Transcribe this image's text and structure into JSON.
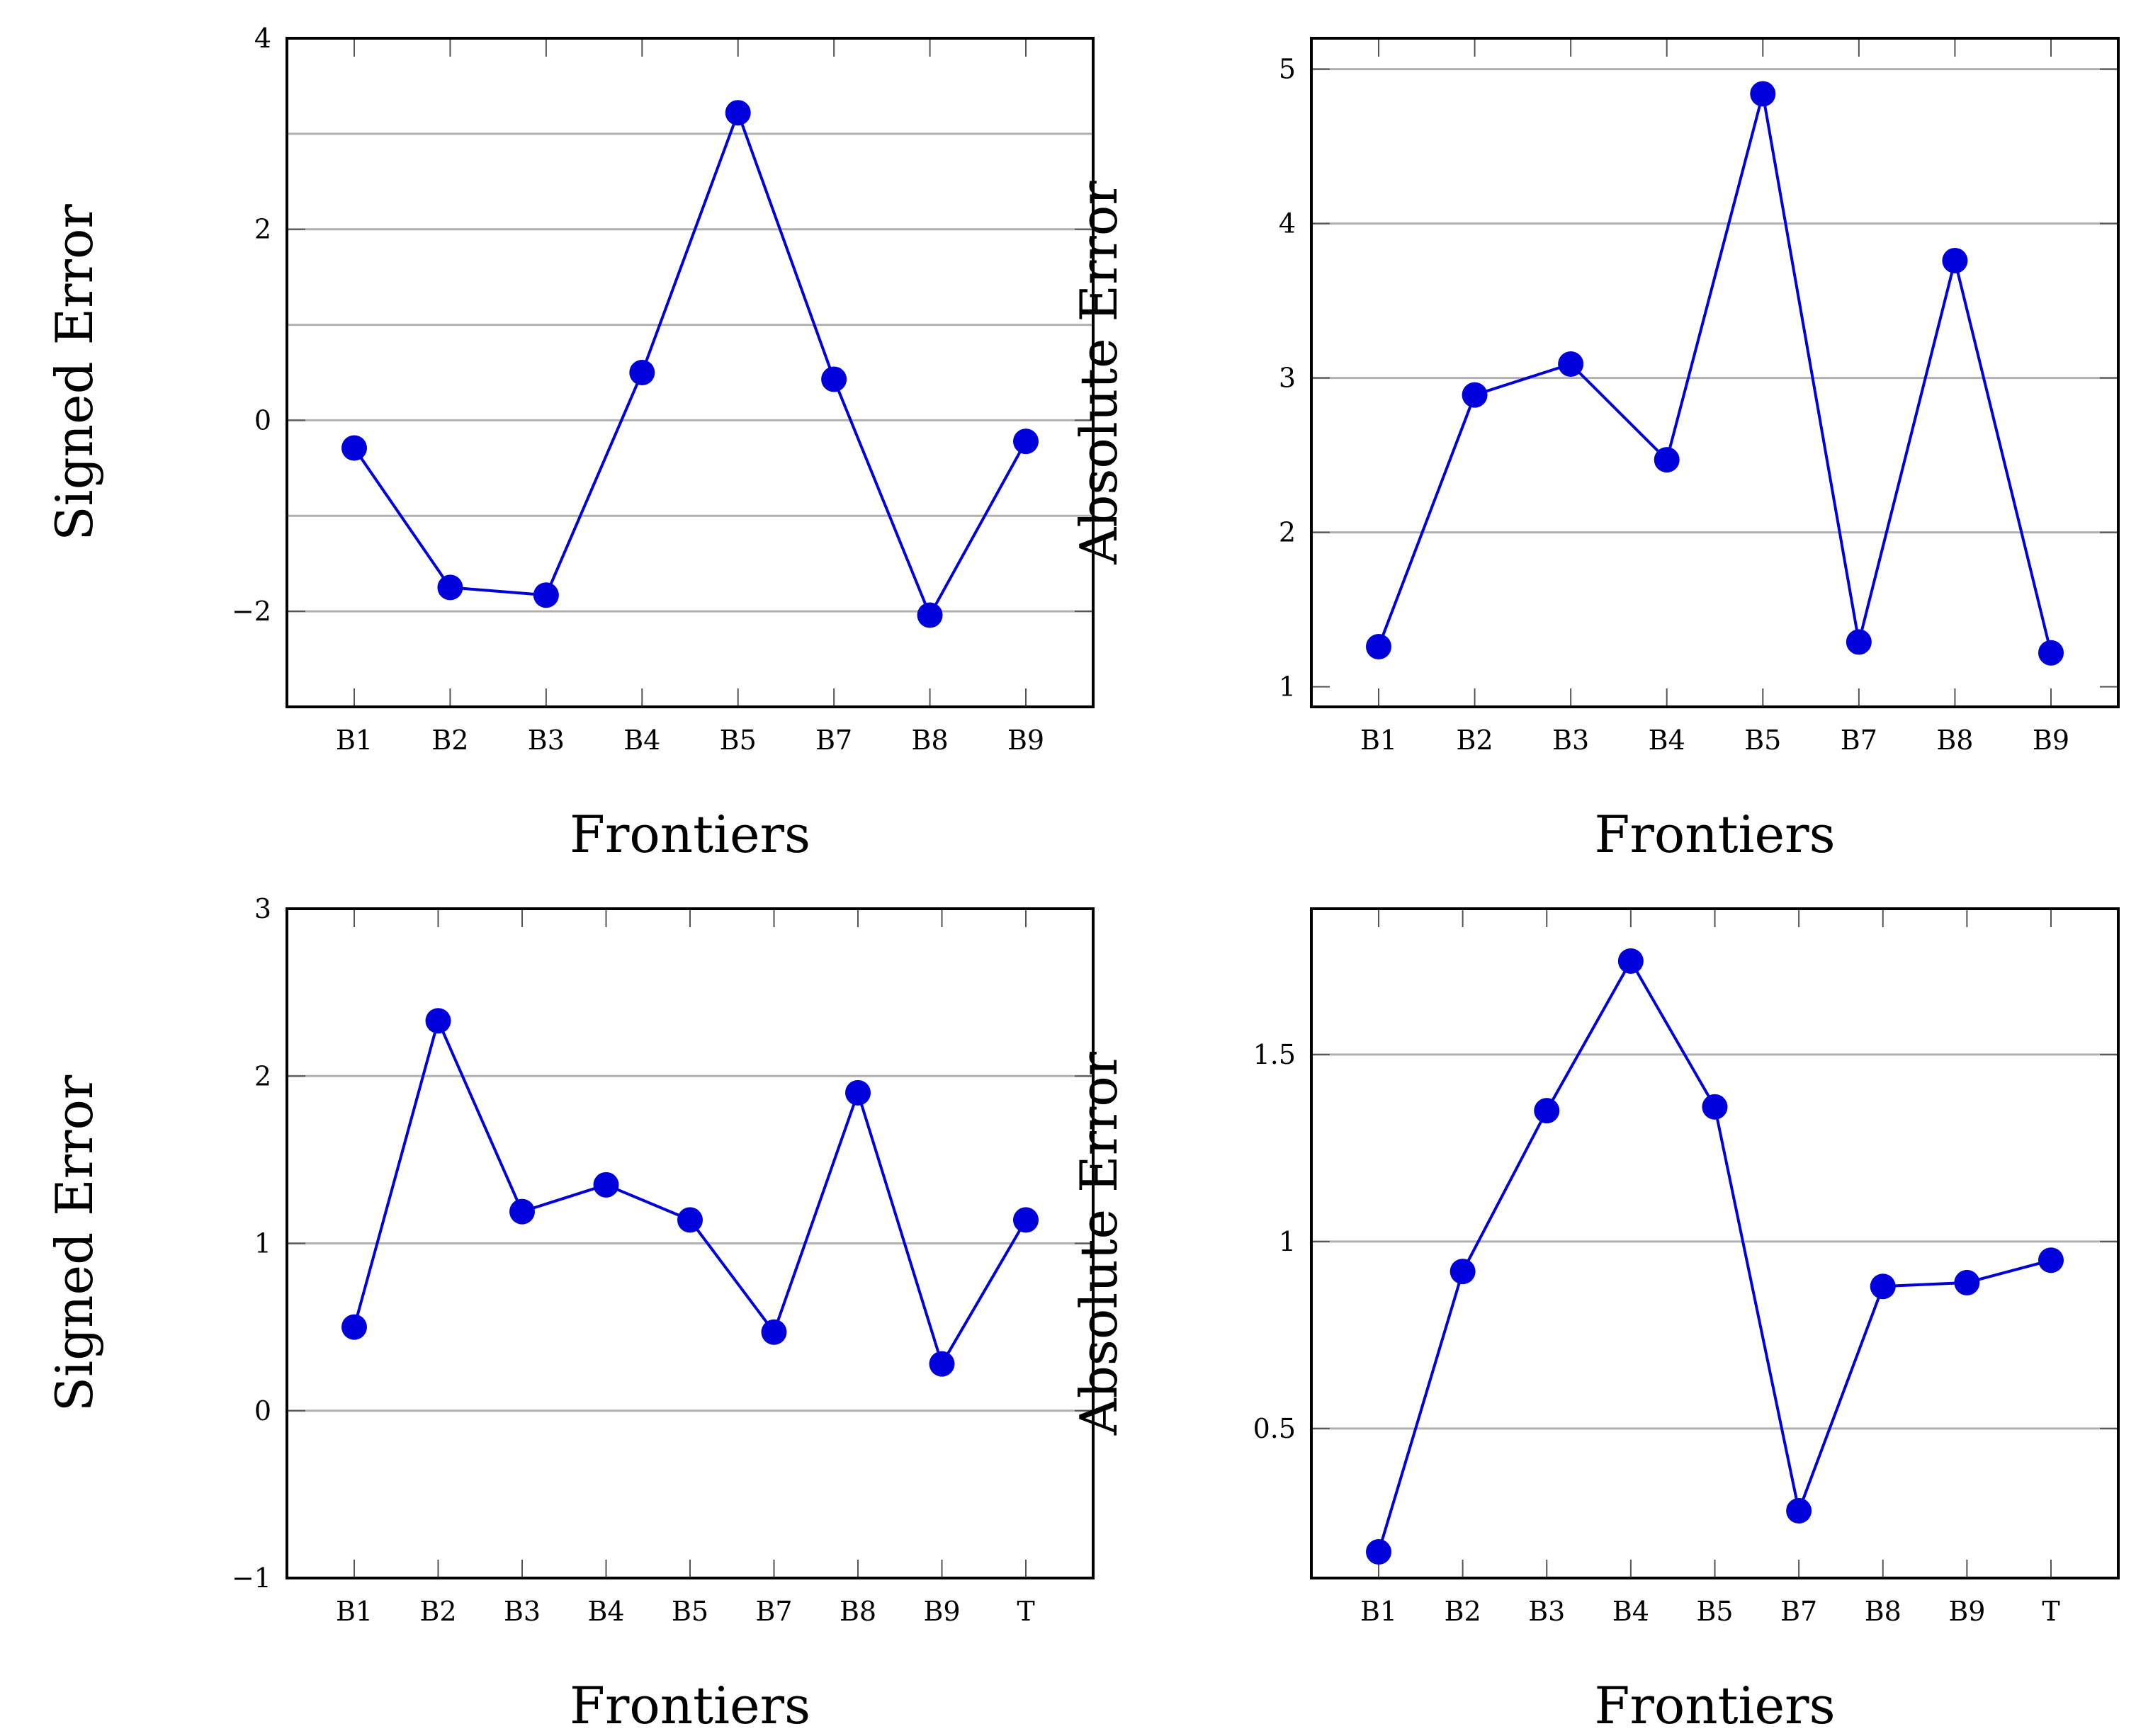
{
  "colors": {
    "series": "#0000dd",
    "grid": "#b0b0b0",
    "axis": "#000000"
  },
  "chart_data": [
    {
      "type": "line",
      "position": "top-left",
      "xlabel": "Frontiers",
      "ylabel": "Signed Error",
      "categories": [
        "B1",
        "B2",
        "B3",
        "B4",
        "B5",
        "B7",
        "B8",
        "B9"
      ],
      "series": [
        {
          "name": "Signed Error",
          "values": [
            -0.29,
            -1.75,
            -1.83,
            0.5,
            3.22,
            0.43,
            -2.04,
            -0.22
          ]
        }
      ],
      "ylim": [
        -3,
        4
      ],
      "yticks": [
        -2,
        0,
        2,
        4
      ],
      "ytick_labels": [
        "−2",
        "0",
        "2",
        "4"
      ],
      "grid_y": [
        -2,
        -1,
        0,
        1,
        2,
        3
      ],
      "grid": true
    },
    {
      "type": "line",
      "position": "top-right",
      "xlabel": "Frontiers",
      "ylabel": "Absolute Error",
      "categories": [
        "B1",
        "B2",
        "B3",
        "B4",
        "B5",
        "B7",
        "B8",
        "B9"
      ],
      "series": [
        {
          "name": "Absolute Error",
          "values": [
            1.26,
            2.89,
            3.09,
            2.47,
            4.84,
            1.29,
            3.76,
            1.22
          ]
        }
      ],
      "ylim": [
        0.87,
        5.2
      ],
      "yticks": [
        1,
        2,
        3,
        4,
        5
      ],
      "ytick_labels": [
        "1",
        "2",
        "3",
        "4",
        "5"
      ],
      "grid_y": [
        2,
        3,
        4,
        5
      ],
      "grid": true
    },
    {
      "type": "line",
      "position": "bottom-left",
      "xlabel": "Frontiers",
      "ylabel": "Signed Error",
      "categories": [
        "B1",
        "B2",
        "B3",
        "B4",
        "B5",
        "B7",
        "B8",
        "B9",
        "T"
      ],
      "series": [
        {
          "name": "Signed Error",
          "values": [
            0.5,
            2.33,
            1.19,
            1.35,
            1.14,
            0.47,
            1.9,
            0.28,
            1.14
          ]
        }
      ],
      "ylim": [
        -1,
        3
      ],
      "yticks": [
        -1,
        0,
        1,
        2,
        3
      ],
      "ytick_labels": [
        "−1",
        "0",
        "1",
        "2",
        "3"
      ],
      "grid_y": [
        0,
        1,
        2
      ],
      "grid": true
    },
    {
      "type": "line",
      "position": "bottom-right",
      "xlabel": "Frontiers",
      "ylabel": "Absolute Error",
      "categories": [
        "B1",
        "B2",
        "B3",
        "B4",
        "B5",
        "B7",
        "B8",
        "B9",
        "T"
      ],
      "series": [
        {
          "name": "Absolute Error",
          "values": [
            0.17,
            0.92,
            1.35,
            1.75,
            1.36,
            0.28,
            0.88,
            0.89,
            0.95
          ]
        }
      ],
      "ylim": [
        0.1,
        1.89
      ],
      "yticks": [
        0.5,
        1,
        1.5
      ],
      "ytick_labels": [
        "0.5",
        "1",
        "1.5"
      ],
      "grid_y": [
        0.5,
        1,
        1.5
      ],
      "grid": true
    }
  ]
}
